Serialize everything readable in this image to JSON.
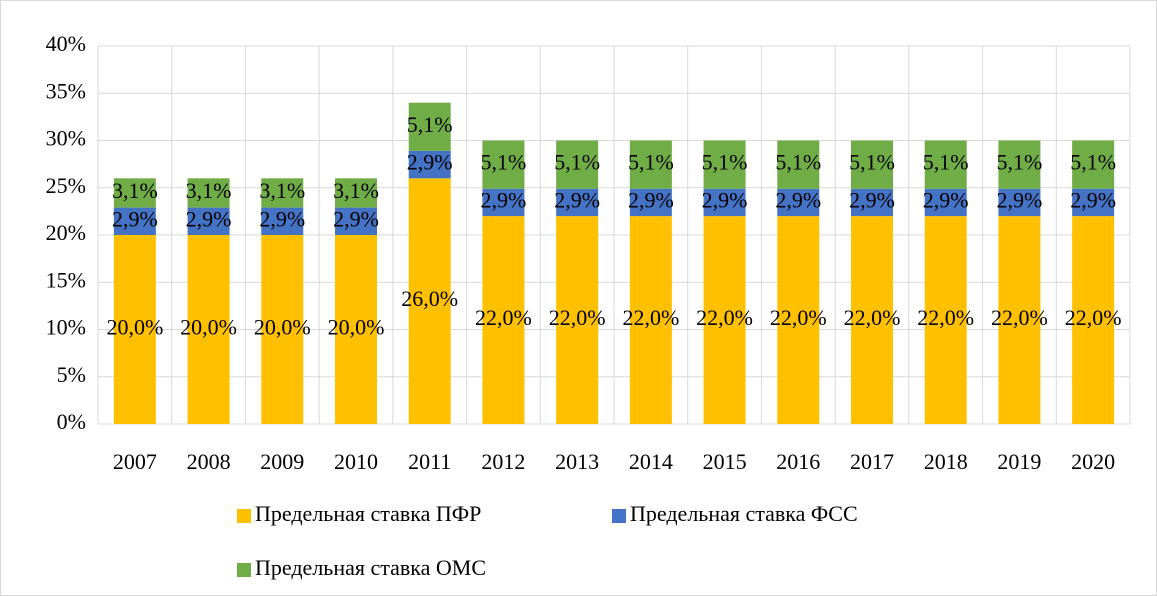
{
  "chart_data": {
    "type": "stacked_bar",
    "categories": [
      "2007",
      "2008",
      "2009",
      "2010",
      "2011",
      "2012",
      "2013",
      "2014",
      "2015",
      "2016",
      "2017",
      "2018",
      "2019",
      "2020"
    ],
    "series": [
      {
        "name": "Предельная ставка ПФР",
        "color": "#ffc000",
        "values": [
          20,
          20,
          20,
          20,
          26,
          22,
          22,
          22,
          22,
          22,
          22,
          22,
          22,
          22
        ],
        "value_labels": [
          "20,0%",
          "20,0%",
          "20,0%",
          "20,0%",
          "26,0%",
          "22,0%",
          "22,0%",
          "22,0%",
          "22,0%",
          "22,0%",
          "22,0%",
          "22,0%",
          "22,0%",
          "22,0%"
        ]
      },
      {
        "name": "Предельная ставка ФСС",
        "color": "#4472c4",
        "values": [
          2.9,
          2.9,
          2.9,
          2.9,
          2.9,
          2.9,
          2.9,
          2.9,
          2.9,
          2.9,
          2.9,
          2.9,
          2.9,
          2.9
        ],
        "value_labels": [
          "2,9%",
          "2,9%",
          "2,9%",
          "2,9%",
          "2,9%",
          "2,9%",
          "2,9%",
          "2,9%",
          "2,9%",
          "2,9%",
          "2,9%",
          "2,9%",
          "2,9%",
          "2,9%"
        ]
      },
      {
        "name": "Предельная ставка ОМС",
        "color": "#70ad47",
        "values": [
          3.1,
          3.1,
          3.1,
          3.1,
          5.1,
          5.1,
          5.1,
          5.1,
          5.1,
          5.1,
          5.1,
          5.1,
          5.1,
          5.1
        ],
        "value_labels": [
          "3,1%",
          "3,1%",
          "3,1%",
          "3,1%",
          "5,1%",
          "5,1%",
          "5,1%",
          "5,1%",
          "5,1%",
          "5,1%",
          "5,1%",
          "5,1%",
          "5,1%",
          "5,1%"
        ]
      }
    ],
    "ylim": [
      0,
      40
    ],
    "yticks": [
      {
        "value": 0,
        "label": "0%"
      },
      {
        "value": 5,
        "label": "5%"
      },
      {
        "value": 10,
        "label": "10%"
      },
      {
        "value": 15,
        "label": "15%"
      },
      {
        "value": 20,
        "label": "20%"
      },
      {
        "value": 25,
        "label": "25%"
      },
      {
        "value": 30,
        "label": "30%"
      },
      {
        "value": 35,
        "label": "35%"
      },
      {
        "value": 40,
        "label": "40%"
      }
    ],
    "grid": true,
    "legend": "bottom"
  }
}
